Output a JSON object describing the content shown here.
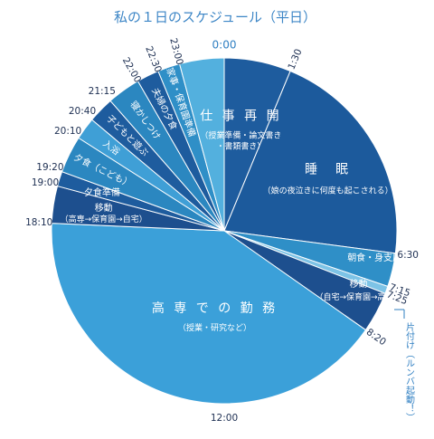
{
  "chart_data": {
    "type": "pie",
    "title": "私の１日のスケジュール（平日）",
    "total_minutes": 1440,
    "start_at_top": "0:00",
    "segments": [
      {
        "start": "0:00",
        "end": "1:30",
        "lines": [
          "仕 事 再 開",
          "（授業準備・論文書き",
          "・書類書き）"
        ],
        "color": "#1e5c9e",
        "style": "horizontal"
      },
      {
        "start": "1:30",
        "end": "6:30",
        "lines": [
          "睡　眠",
          "（娘の夜泣きに何度も起こされる）"
        ],
        "color": "#1c5a9c",
        "style": "horizontal"
      },
      {
        "start": "6:30",
        "end": "7:15",
        "lines": [
          "朝食・身支度など"
        ],
        "color": "#2f8fc7",
        "style": "horizontal"
      },
      {
        "start": "7:15",
        "end": "7:25",
        "lines": [],
        "color": "#7dc3e6",
        "style": "none"
      },
      {
        "start": "7:25",
        "end": "8:20",
        "lines": [
          "移動",
          "（自宅→保育園→高専）"
        ],
        "color": "#1d4f8e",
        "style": "horizontal"
      },
      {
        "start": "8:20",
        "end": "18:10",
        "lines": [
          "高 専 で の 勤 務",
          "（授業・研究など）"
        ],
        "color": "#3ba0d9",
        "style": "horizontal"
      },
      {
        "start": "18:10",
        "end": "19:00",
        "lines": [
          "移動",
          "（高専→保育園→自宅）"
        ],
        "color": "#1d4f8e",
        "style": "horizontal"
      },
      {
        "start": "19:00",
        "end": "19:20",
        "lines": [
          "夕食準備"
        ],
        "color": "#1e5c9e",
        "style": "horizontal"
      },
      {
        "start": "19:20",
        "end": "20:10",
        "lines": [
          "夕食（こども）"
        ],
        "color": "#2b87c0",
        "style": "radial"
      },
      {
        "start": "20:10",
        "end": "20:40",
        "lines": [
          "入浴"
        ],
        "color": "#3f9fd6",
        "style": "radial"
      },
      {
        "start": "20:40",
        "end": "21:15",
        "lines": [
          "子どもと遊ぶ"
        ],
        "color": "#1e5c9e",
        "style": "radial"
      },
      {
        "start": "21:15",
        "end": "22:00",
        "lines": [
          "寝かしつけ"
        ],
        "color": "#2b87c0",
        "style": "radial"
      },
      {
        "start": "22:00",
        "end": "22:30",
        "lines": [
          "夫婦の夕食"
        ],
        "color": "#1e5c9e",
        "style": "radial"
      },
      {
        "start": "22:30",
        "end": "23:00",
        "lines": [
          "家事・保育園準備"
        ],
        "color": "#2f8fc7",
        "style": "radial"
      },
      {
        "start": "23:00",
        "end": "0:00",
        "lines": [],
        "color": "#53b0de",
        "style": "none"
      }
    ],
    "ticks": [
      "0:00",
      "1:30",
      "6:30",
      "7:15",
      "7:25",
      "8:20",
      "12:00",
      "18:10",
      "19:00",
      "19:20",
      "20:10",
      "20:40",
      "21:15",
      "22:00",
      "22:30",
      "23:00"
    ],
    "side_note": "片付け（ルンバ起動！）"
  }
}
